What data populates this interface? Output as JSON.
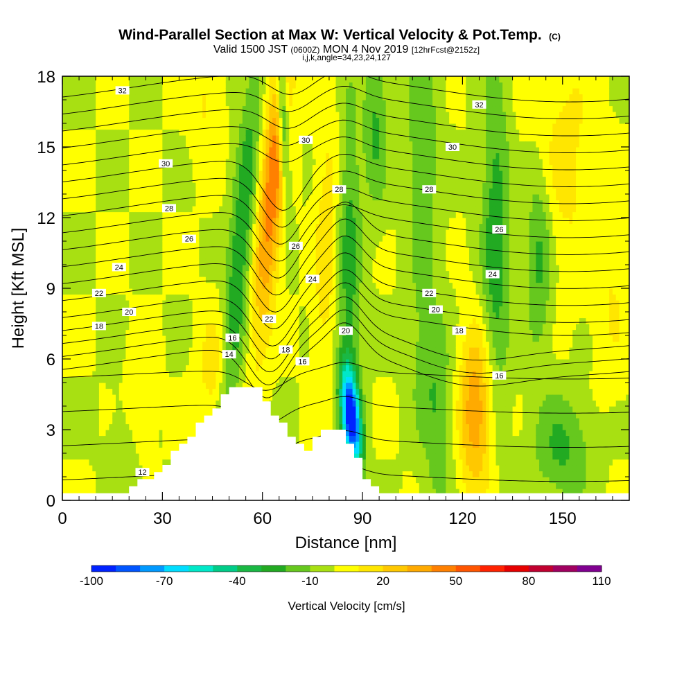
{
  "chart_data": {
    "type": "heatmap",
    "title": "Wind-Parallel Section at Max W: Vertical Velocity & Pot.Temp.",
    "title_mark": "(C)",
    "subtitle_parts": [
      "Valid 1500 JST ",
      "(0600Z)",
      " MON 4 Nov 2019 ",
      "[12hrFcst@2152z]"
    ],
    "subtitle2": "i,j,k,angle=34,23,24,127",
    "xlabel": "Distance [nm]",
    "ylabel": "Height [Kft MSL]",
    "xlim": [
      0,
      170
    ],
    "ylim": [
      0,
      18
    ],
    "x_ticks": [
      0,
      30,
      60,
      90,
      120,
      150
    ],
    "y_ticks": [
      0,
      3,
      6,
      9,
      12,
      15,
      18
    ],
    "x_tick_labels": [
      "0",
      "30",
      "60",
      "90",
      "120",
      "150"
    ],
    "y_tick_labels": [
      "0",
      "3",
      "6",
      "9",
      "12",
      "15",
      "18"
    ],
    "colorbar": {
      "label": "Vertical Velocity [cm/s]",
      "min": -100,
      "max": 110,
      "tick_values": [
        -100,
        -70,
        -40,
        -10,
        20,
        50,
        80,
        110
      ],
      "tick_labels": [
        "-100",
        "-70",
        "-40",
        "-10",
        "20",
        "50",
        "80",
        "110"
      ],
      "colors": [
        "#0022ff",
        "#0055ff",
        "#0099ff",
        "#00ddff",
        "#00e8c8",
        "#00cc88",
        "#1ab844",
        "#22aa22",
        "#66c81e",
        "#a8e012",
        "#ffff00",
        "#ffe600",
        "#ffc800",
        "#ffaa00",
        "#ff8000",
        "#ff5500",
        "#ff2200",
        "#e60000",
        "#c00030",
        "#a00060",
        "#800090"
      ]
    },
    "theta_contour_labels": [
      {
        "x": 24,
        "y": 1.2,
        "v": "12"
      },
      {
        "x": 50,
        "y": 6.2,
        "v": "14"
      },
      {
        "x": 51,
        "y": 6.9,
        "v": "16"
      },
      {
        "x": 72,
        "y": 5.9,
        "v": "16"
      },
      {
        "x": 131,
        "y": 5.3,
        "v": "16"
      },
      {
        "x": 11,
        "y": 7.4,
        "v": "18"
      },
      {
        "x": 67,
        "y": 6.4,
        "v": "18"
      },
      {
        "x": 119,
        "y": 7.2,
        "v": "18"
      },
      {
        "x": 20,
        "y": 8.0,
        "v": "20"
      },
      {
        "x": 85,
        "y": 7.2,
        "v": "20"
      },
      {
        "x": 112,
        "y": 8.1,
        "v": "20"
      },
      {
        "x": 11,
        "y": 8.8,
        "v": "22"
      },
      {
        "x": 62,
        "y": 7.7,
        "v": "22"
      },
      {
        "x": 110,
        "y": 8.8,
        "v": "22"
      },
      {
        "x": 17,
        "y": 9.9,
        "v": "24"
      },
      {
        "x": 75,
        "y": 9.4,
        "v": "24"
      },
      {
        "x": 129,
        "y": 9.6,
        "v": "24"
      },
      {
        "x": 38,
        "y": 11.1,
        "v": "26"
      },
      {
        "x": 70,
        "y": 10.8,
        "v": "26"
      },
      {
        "x": 131,
        "y": 11.5,
        "v": "26"
      },
      {
        "x": 32,
        "y": 12.4,
        "v": "28"
      },
      {
        "x": 83,
        "y": 13.2,
        "v": "28"
      },
      {
        "x": 110,
        "y": 13.2,
        "v": "28"
      },
      {
        "x": 31,
        "y": 14.3,
        "v": "30"
      },
      {
        "x": 73,
        "y": 15.3,
        "v": "30"
      },
      {
        "x": 117,
        "y": 15.0,
        "v": "30"
      },
      {
        "x": 18,
        "y": 17.4,
        "v": "32"
      },
      {
        "x": 125,
        "y": 16.8,
        "v": "32"
      }
    ]
  }
}
